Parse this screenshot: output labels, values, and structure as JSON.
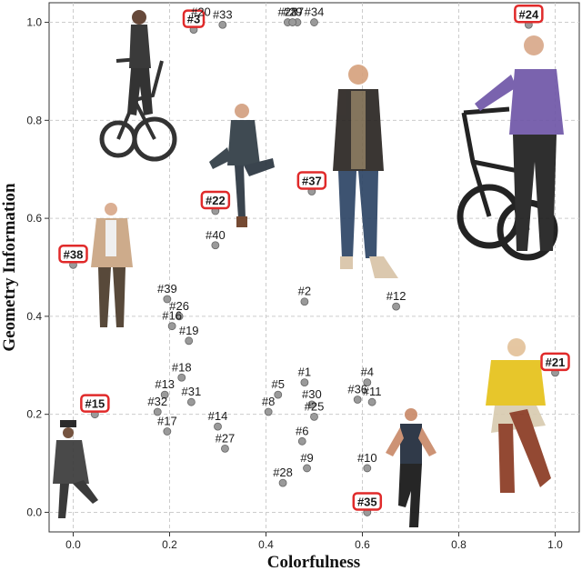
{
  "chart_data": {
    "type": "scatter",
    "title": "",
    "xlabel": "Colorfulness",
    "ylabel": "Geometry Information",
    "xlim": [
      -0.05,
      1.05
    ],
    "ylim": [
      -0.04,
      1.04
    ],
    "xticks": [
      "0.0",
      "0.2",
      "0.4",
      "0.6",
      "0.8",
      "1.0"
    ],
    "yticks": [
      "0.0",
      "0.2",
      "0.4",
      "0.6",
      "0.8",
      "1.0"
    ],
    "grid": true,
    "points": [
      {
        "label": "#1",
        "x": 0.48,
        "y": 0.265,
        "highlighted": false
      },
      {
        "label": "#2",
        "x": 0.48,
        "y": 0.43,
        "highlighted": false
      },
      {
        "label": "#3",
        "x": 0.25,
        "y": 0.985,
        "highlighted": true
      },
      {
        "label": "#4",
        "x": 0.61,
        "y": 0.265,
        "highlighted": false
      },
      {
        "label": "#5",
        "x": 0.425,
        "y": 0.24,
        "highlighted": false
      },
      {
        "label": "#6",
        "x": 0.475,
        "y": 0.145,
        "highlighted": false
      },
      {
        "label": "#7",
        "x": 0.465,
        "y": 1.0,
        "highlighted": false
      },
      {
        "label": "#8",
        "x": 0.405,
        "y": 0.205,
        "highlighted": false
      },
      {
        "label": "#9",
        "x": 0.485,
        "y": 0.09,
        "highlighted": false
      },
      {
        "label": "#10",
        "x": 0.61,
        "y": 0.09,
        "highlighted": false
      },
      {
        "label": "#11",
        "x": 0.62,
        "y": 0.225,
        "highlighted": false
      },
      {
        "label": "#12",
        "x": 0.67,
        "y": 0.42,
        "highlighted": false
      },
      {
        "label": "#13",
        "x": 0.19,
        "y": 0.24,
        "highlighted": false
      },
      {
        "label": "#14",
        "x": 0.3,
        "y": 0.175,
        "highlighted": false
      },
      {
        "label": "#15",
        "x": 0.045,
        "y": 0.2,
        "highlighted": true
      },
      {
        "label": "#16",
        "x": 0.205,
        "y": 0.38,
        "highlighted": false
      },
      {
        "label": "#17",
        "x": 0.195,
        "y": 0.165,
        "highlighted": false
      },
      {
        "label": "#18",
        "x": 0.225,
        "y": 0.275,
        "highlighted": false
      },
      {
        "label": "#19",
        "x": 0.24,
        "y": 0.35,
        "highlighted": false
      },
      {
        "label": "#20",
        "x": 0.265,
        "y": 1.0,
        "highlighted": false
      },
      {
        "label": "#21",
        "x": 1.0,
        "y": 0.285,
        "highlighted": true
      },
      {
        "label": "#22",
        "x": 0.295,
        "y": 0.615,
        "highlighted": true
      },
      {
        "label": "#23",
        "x": 0.445,
        "y": 1.0,
        "highlighted": false
      },
      {
        "label": "#24",
        "x": 0.945,
        "y": 0.995,
        "highlighted": true
      },
      {
        "label": "#25",
        "x": 0.5,
        "y": 0.195,
        "highlighted": false
      },
      {
        "label": "#26",
        "x": 0.22,
        "y": 0.4,
        "highlighted": false
      },
      {
        "label": "#27",
        "x": 0.315,
        "y": 0.13,
        "highlighted": false
      },
      {
        "label": "#28",
        "x": 0.435,
        "y": 0.06,
        "highlighted": false
      },
      {
        "label": "#29",
        "x": 0.455,
        "y": 1.0,
        "highlighted": false
      },
      {
        "label": "#30",
        "x": 0.495,
        "y": 0.22,
        "highlighted": false
      },
      {
        "label": "#31",
        "x": 0.245,
        "y": 0.225,
        "highlighted": false
      },
      {
        "label": "#32",
        "x": 0.175,
        "y": 0.205,
        "highlighted": false
      },
      {
        "label": "#33",
        "x": 0.31,
        "y": 0.995,
        "highlighted": false
      },
      {
        "label": "#34",
        "x": 0.5,
        "y": 1.0,
        "highlighted": false
      },
      {
        "label": "#35",
        "x": 0.61,
        "y": 0.0,
        "highlighted": true
      },
      {
        "label": "#36",
        "x": 0.59,
        "y": 0.23,
        "highlighted": false
      },
      {
        "label": "#37",
        "x": 0.495,
        "y": 0.655,
        "highlighted": true
      },
      {
        "label": "#38",
        "x": 0.0,
        "y": 0.505,
        "highlighted": true
      },
      {
        "label": "#39",
        "x": 0.195,
        "y": 0.435,
        "highlighted": false
      },
      {
        "label": "#40",
        "x": 0.295,
        "y": 0.545,
        "highlighted": false
      }
    ]
  },
  "colors": {
    "highlight_box": "#e02a2a",
    "marker": "#9a9a9a",
    "grid": "#cccccc",
    "person_dark": "#2b2b2b",
    "person_skin": "#d9a98a",
    "cardigan": "#6f56a8",
    "yellow_top": "#e6c21a",
    "boots": "#8a3a22",
    "jeans": "#2d4566",
    "beige_jacket": "#c9a482",
    "dark_olive": "#4a3a2a"
  },
  "illustrations": [
    {
      "name": "woman-on-bicycle-3"
    },
    {
      "name": "man-sitting-22"
    },
    {
      "name": "man-with-phone-37"
    },
    {
      "name": "woman-with-bicycle-24"
    },
    {
      "name": "old-man-38"
    },
    {
      "name": "man-in-hat-15"
    },
    {
      "name": "woman-posing-35"
    },
    {
      "name": "woman-yellow-top-21"
    }
  ]
}
